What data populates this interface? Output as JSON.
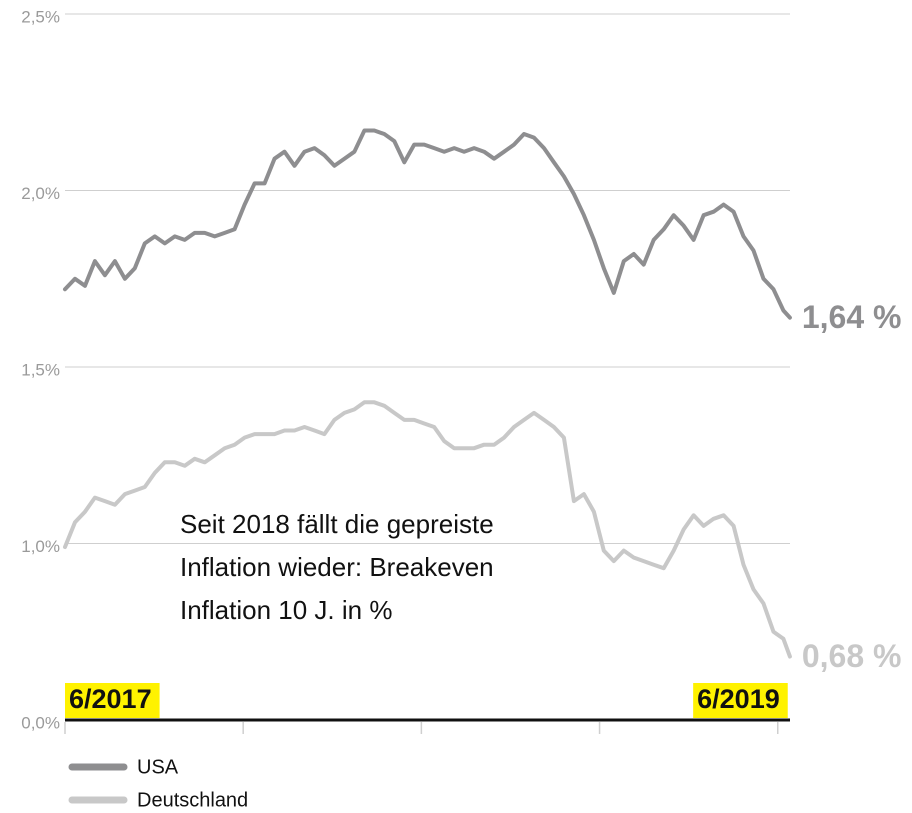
{
  "chart_data": {
    "type": "line",
    "annotation": [
      "Seit 2018 fällt die gepreiste",
      "Inflation wieder: Breakeven",
      "Inflation 10 J. in %"
    ],
    "x": [
      2017.5,
      2017.528,
      2017.556,
      2017.584,
      2017.612,
      2017.64,
      2017.668,
      2017.696,
      2017.724,
      2017.752,
      2017.78,
      2017.808,
      2017.836,
      2017.864,
      2017.892,
      2017.92,
      2017.948,
      2017.976,
      2018.004,
      2018.032,
      2018.06,
      2018.088,
      2018.116,
      2018.144,
      2018.172,
      2018.2,
      2018.228,
      2018.256,
      2018.284,
      2018.312,
      2018.34,
      2018.368,
      2018.396,
      2018.424,
      2018.452,
      2018.48,
      2018.508,
      2018.536,
      2018.564,
      2018.592,
      2018.62,
      2018.648,
      2018.676,
      2018.704,
      2018.732,
      2018.76,
      2018.788,
      2018.816,
      2018.844,
      2018.872,
      2018.9,
      2018.928,
      2018.956,
      2018.984,
      2019.012,
      2019.04,
      2019.068,
      2019.096,
      2019.124,
      2019.152,
      2019.18,
      2019.208,
      2019.236,
      2019.264,
      2019.292,
      2019.32,
      2019.348,
      2019.376,
      2019.404,
      2019.432,
      2019.46,
      2019.488,
      2019.516,
      2019.534
    ],
    "series": [
      {
        "name": "USA",
        "color": "#8e8e90",
        "end_label": "1,64 %",
        "values": [
          1.72,
          1.75,
          1.73,
          1.8,
          1.76,
          1.8,
          1.75,
          1.78,
          1.85,
          1.87,
          1.85,
          1.87,
          1.86,
          1.88,
          1.88,
          1.87,
          1.88,
          1.89,
          1.96,
          2.02,
          2.02,
          2.09,
          2.11,
          2.07,
          2.11,
          2.12,
          2.1,
          2.07,
          2.09,
          2.11,
          2.17,
          2.17,
          2.16,
          2.14,
          2.08,
          2.13,
          2.13,
          2.12,
          2.11,
          2.12,
          2.11,
          2.12,
          2.11,
          2.09,
          2.11,
          2.13,
          2.16,
          2.15,
          2.12,
          2.08,
          2.04,
          1.99,
          1.93,
          1.86,
          1.78,
          1.71,
          1.8,
          1.82,
          1.79,
          1.86,
          1.89,
          1.93,
          1.9,
          1.86,
          1.93,
          1.94,
          1.96,
          1.94,
          1.87,
          1.83,
          1.75,
          1.72,
          1.66,
          1.64
        ]
      },
      {
        "name": "Deutschland",
        "color": "#c8c8c8",
        "end_label": "0,68 %",
        "values": [
          0.99,
          1.06,
          1.09,
          1.13,
          1.12,
          1.11,
          1.14,
          1.15,
          1.16,
          1.2,
          1.23,
          1.23,
          1.22,
          1.24,
          1.23,
          1.25,
          1.27,
          1.28,
          1.3,
          1.31,
          1.31,
          1.31,
          1.32,
          1.32,
          1.33,
          1.32,
          1.31,
          1.35,
          1.37,
          1.38,
          1.4,
          1.4,
          1.39,
          1.37,
          1.35,
          1.35,
          1.34,
          1.33,
          1.29,
          1.27,
          1.27,
          1.27,
          1.28,
          1.28,
          1.3,
          1.33,
          1.35,
          1.37,
          1.35,
          1.33,
          1.3,
          1.12,
          1.14,
          1.09,
          0.98,
          0.95,
          0.98,
          0.96,
          0.95,
          0.94,
          0.93,
          0.98,
          1.04,
          1.08,
          1.05,
          1.07,
          1.08,
          1.05,
          0.94,
          0.87,
          0.83,
          0.75,
          0.73,
          0.68
        ]
      }
    ],
    "xlim": [
      2017.5,
      2019.54
    ],
    "xticks": [
      {
        "value": 2017.5,
        "label": "6/2017"
      },
      {
        "value": 2018.0,
        "label": null
      },
      {
        "value": 2018.5,
        "label": null
      },
      {
        "value": 2019.0,
        "label": null
      },
      {
        "value": 2019.5,
        "label": "6/2019"
      }
    ],
    "ylim": [
      0.5,
      2.5
    ],
    "yticks": [
      {
        "value": 0,
        "label": "0,0%"
      },
      {
        "value": 1.0,
        "label": "1,0%"
      },
      {
        "value": 1.5,
        "label": "1,5%"
      },
      {
        "value": 2.0,
        "label": "2,0%"
      },
      {
        "value": 2.5,
        "label": "2,5%"
      }
    ],
    "grid": true
  }
}
